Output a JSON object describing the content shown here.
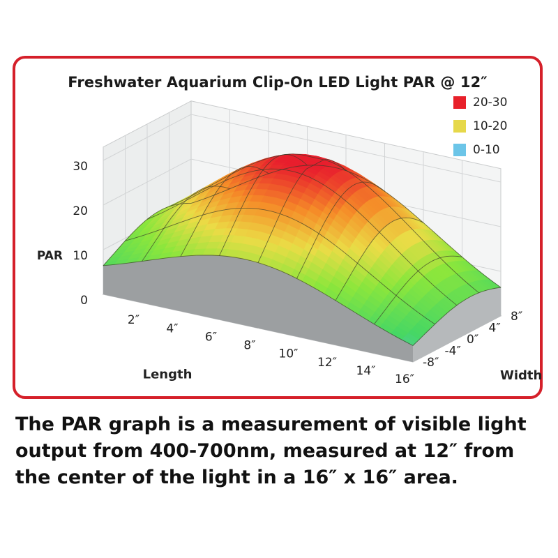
{
  "chart_data": {
    "type": "surface",
    "title": "Freshwater Aquarium Clip-On LED Light PAR @ 12″",
    "zlabel": "PAR",
    "xlabel": "Length",
    "ylabel": "Width",
    "z_ticks": [
      "0",
      "10",
      "20",
      "30"
    ],
    "x_ticks": [
      "2″",
      "4″",
      "6″",
      "8″",
      "10″",
      "12″",
      "14″",
      "16″"
    ],
    "y_ticks": [
      "-8″",
      "-4″",
      "0″",
      "4″",
      "8″"
    ],
    "zlim": [
      0,
      30
    ],
    "x_range": [
      0,
      16
    ],
    "y_range": [
      -8,
      8
    ],
    "surface_peak_par": 30,
    "surface_edge_par": {
      "front_left_corner": 10,
      "front_right_corner": 2,
      "back_right_corner": 6,
      "back_left_corner": 20
    },
    "legend": [
      {
        "label": "20-30",
        "color": "#e8202a"
      },
      {
        "label": "10-20",
        "color": "#e6d84a"
      },
      {
        "label": "0-10",
        "color": "#6cc5e8"
      }
    ]
  },
  "caption": "The PAR graph is a measurement of visible light output from 400-700nm, measured at 12″ from the center of the light in a 16″ x 16″ area."
}
